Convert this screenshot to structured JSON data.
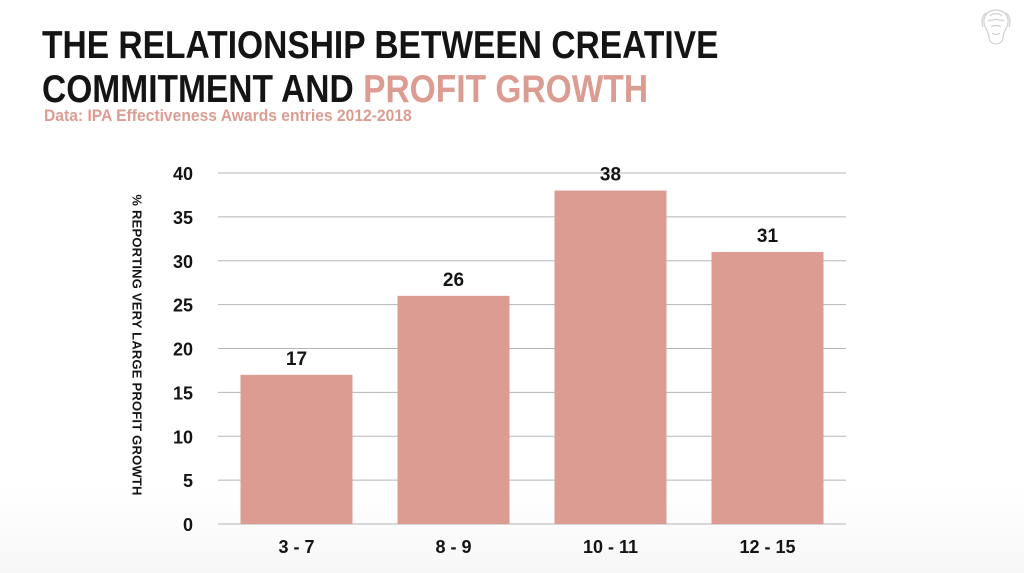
{
  "header": {
    "title_part1": "THE RELATIONSHIP BETWEEN CREATIVE COMMITMENT AND ",
    "title_accent": "PROFIT GROWTH",
    "subtitle": "Data: IPA Effectiveness Awards entries 2012-2018"
  },
  "logo": {
    "icon": "lion-logo-icon"
  },
  "colors": {
    "bar": "#dd9c92",
    "accent": "#dd9c92",
    "text": "#141414",
    "grid": "#b5b5b5"
  },
  "chart_data": {
    "type": "bar",
    "categories": [
      "3 - 7",
      "8 - 9",
      "10 - 11",
      "12 - 15"
    ],
    "values": [
      17,
      26,
      38,
      31
    ],
    "data_labels": [
      "17",
      "26",
      "38",
      "31"
    ],
    "ylabel": "% REPORTING VERY LARGE PROFIT GROWTH",
    "xlabel": "",
    "ylim": [
      0,
      40
    ],
    "yticks": [
      0,
      5,
      10,
      15,
      20,
      25,
      30,
      35,
      40
    ],
    "grid": true,
    "legend": "none"
  }
}
